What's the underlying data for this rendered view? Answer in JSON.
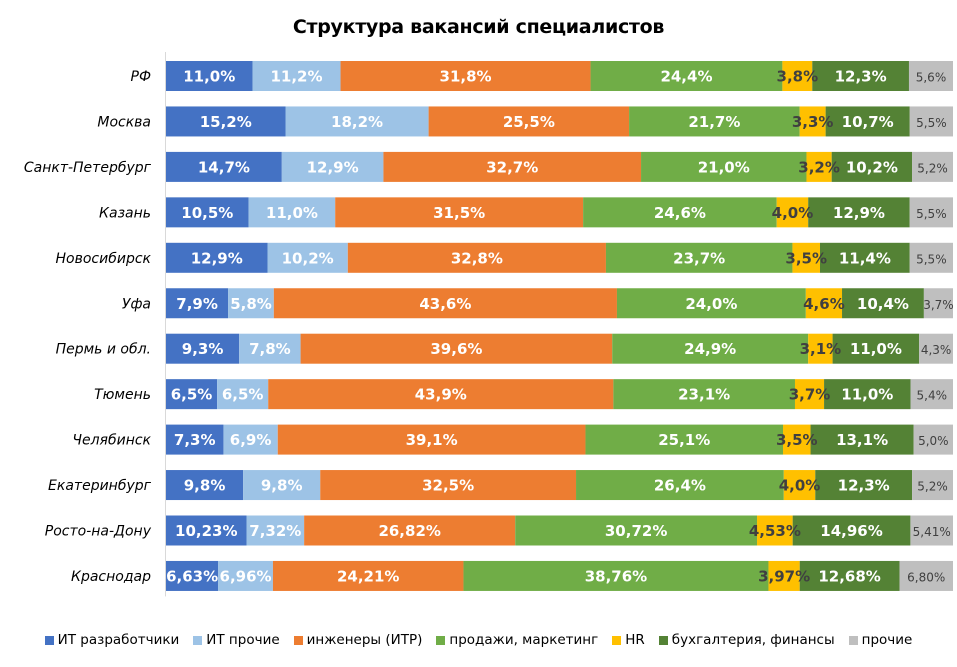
{
  "chart_data": {
    "type": "bar",
    "orientation": "horizontal",
    "stacked": "percent",
    "title": "Структура вакансий специалистов",
    "xlabel": "",
    "ylabel": "",
    "xlim": [
      0,
      100
    ],
    "grid": false,
    "legend_position": "bottom",
    "categories": [
      "РФ",
      "Москва",
      "Санкт-Петербург",
      "Казань",
      "Новосибирск",
      "Уфа",
      "Пермь и обл.",
      "Тюмень",
      "Челябинск",
      "Екатеринбург",
      "Росто-на-Дону",
      "Краснодар"
    ],
    "series": [
      {
        "name": "ИТ разработчики",
        "color": "#4472C4",
        "label_color": "#ffffff",
        "values": [
          11.0,
          15.2,
          14.7,
          10.5,
          12.9,
          7.9,
          9.3,
          6.5,
          7.3,
          9.8,
          10.23,
          6.63
        ],
        "labels": [
          "11,0%",
          "15,2%",
          "14,7%",
          "10,5%",
          "12,9%",
          "7,9%",
          "9,3%",
          "6,5%",
          "7,3%",
          "9,8%",
          "10,23%",
          "6,63%"
        ]
      },
      {
        "name": "ИТ прочие",
        "color": "#9DC3E6",
        "label_color": "#ffffff",
        "values": [
          11.2,
          18.2,
          12.9,
          11.0,
          10.2,
          5.8,
          7.8,
          6.5,
          6.9,
          9.8,
          7.32,
          6.96
        ],
        "labels": [
          "11,2%",
          "18,2%",
          "12,9%",
          "11,0%",
          "10,2%",
          "5,8%",
          "7,8%",
          "6,5%",
          "6,9%",
          "9,8%",
          "7,32%",
          "6,96%"
        ]
      },
      {
        "name": "инженеры (ИТР)",
        "color": "#ED7D31",
        "label_color": "#ffffff",
        "values": [
          31.8,
          25.5,
          32.7,
          31.5,
          32.8,
          43.6,
          39.6,
          43.9,
          39.1,
          32.5,
          26.82,
          24.21
        ],
        "labels": [
          "31,8%",
          "25,5%",
          "32,7%",
          "31,5%",
          "32,8%",
          "43,6%",
          "39,6%",
          "43,9%",
          "39,1%",
          "32,5%",
          "26,82%",
          "24,21%"
        ]
      },
      {
        "name": "продажи, маркетинг",
        "color": "#70AD47",
        "label_color": "#ffffff",
        "values": [
          24.4,
          21.7,
          21.0,
          24.6,
          23.7,
          24.0,
          24.9,
          23.1,
          25.1,
          26.4,
          30.72,
          38.76
        ],
        "labels": [
          "24,4%",
          "21,7%",
          "21,0%",
          "24,6%",
          "23,7%",
          "24,0%",
          "24,9%",
          "23,1%",
          "25,1%",
          "26,4%",
          "30,72%",
          "38,76%"
        ]
      },
      {
        "name": "HR",
        "color": "#FFC000",
        "label_color": "#404040",
        "values": [
          3.8,
          3.3,
          3.2,
          4.0,
          3.5,
          4.6,
          3.1,
          3.7,
          3.5,
          4.0,
          4.53,
          3.97
        ],
        "labels": [
          "3,8%",
          "3,3%",
          "3,2%",
          "4,0%",
          "3,5%",
          "4,6%",
          "3,1%",
          "3,7%",
          "3,5%",
          "4,0%",
          "4,53%",
          "3,97%"
        ]
      },
      {
        "name": "бухгалтерия, финансы",
        "color": "#548235",
        "label_color": "#ffffff",
        "values": [
          12.3,
          10.7,
          10.2,
          12.9,
          11.4,
          10.4,
          11.0,
          11.0,
          13.1,
          12.3,
          14.96,
          12.68
        ],
        "labels": [
          "12,3%",
          "10,7%",
          "10,2%",
          "12,9%",
          "11,4%",
          "10,4%",
          "11,0%",
          "11,0%",
          "13,1%",
          "12,3%",
          "14,96%",
          "12,68%"
        ]
      },
      {
        "name": "прочие",
        "color": "#BFBFBF",
        "label_color": "#404040",
        "values": [
          5.6,
          5.5,
          5.2,
          5.5,
          5.5,
          3.7,
          4.3,
          5.4,
          5.0,
          5.2,
          5.41,
          6.8
        ],
        "labels": [
          "5,6%",
          "5,5%",
          "5,2%",
          "5,5%",
          "5,5%",
          "3,7%",
          "4,3%",
          "5,4%",
          "5,0%",
          "5,2%",
          "5,41%",
          "6,80%"
        ]
      }
    ]
  }
}
